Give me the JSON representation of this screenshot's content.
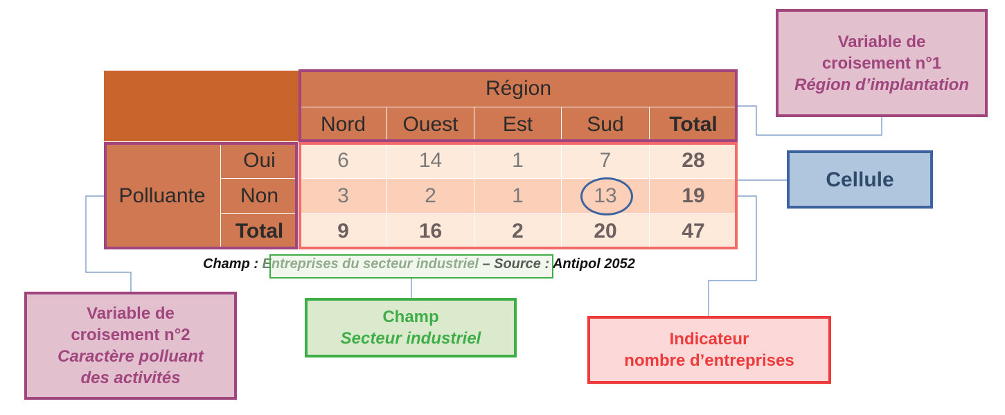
{
  "table": {
    "col_group_title": "Région",
    "columns": [
      "Nord",
      "Ouest",
      "Est",
      "Sud",
      "Total"
    ],
    "row_group_title": "Polluante",
    "rows": [
      {
        "label": "Oui",
        "values": [
          "6",
          "14",
          "1",
          "7",
          "28"
        ]
      },
      {
        "label": "Non",
        "values": [
          "3",
          "2",
          "1",
          "13",
          "19"
        ]
      },
      {
        "label": "Total",
        "values": [
          "9",
          "16",
          "2",
          "20",
          "47"
        ]
      }
    ]
  },
  "source_line": {
    "prefix": "Champ : ",
    "field": "Entreprises du secteur industriel",
    "suffix": " – Source : Antipol 2052"
  },
  "callouts": {
    "var1": {
      "line1": "Variable de",
      "line2": "croisement n°1",
      "line3": "Région d’implantation"
    },
    "cellule": {
      "label": "Cellule"
    },
    "var2": {
      "line1": "Variable de",
      "line2": "croisement n°2",
      "line3": "Caractère polluant",
      "line4": "des activités"
    },
    "champ": {
      "line1": "Champ",
      "line2": "Secteur industriel"
    },
    "indicateur": {
      "line1": "Indicateur",
      "line2": "nombre d’entreprises"
    }
  },
  "colors": {
    "header_fill": "#cf7852",
    "corner_fill": "#c9642c",
    "row_light": "#fdeadb",
    "row_dark": "#fbcfb8",
    "purple_border": "#a0457e",
    "purple_fill": "#e2c0cd",
    "purple_text": "#a0457e",
    "blue_border": "#3c639f",
    "blue_fill": "#b0c5de",
    "blue_text": "#2f4a6a",
    "green_border": "#3fae49",
    "green_fill": "#dbe9cd",
    "green_text": "#3fae49",
    "red_border": "#ee3a3a",
    "red_fill": "#fdd8d8",
    "red_text": "#ee3a3a",
    "table_body_border": "#f26a6a"
  }
}
